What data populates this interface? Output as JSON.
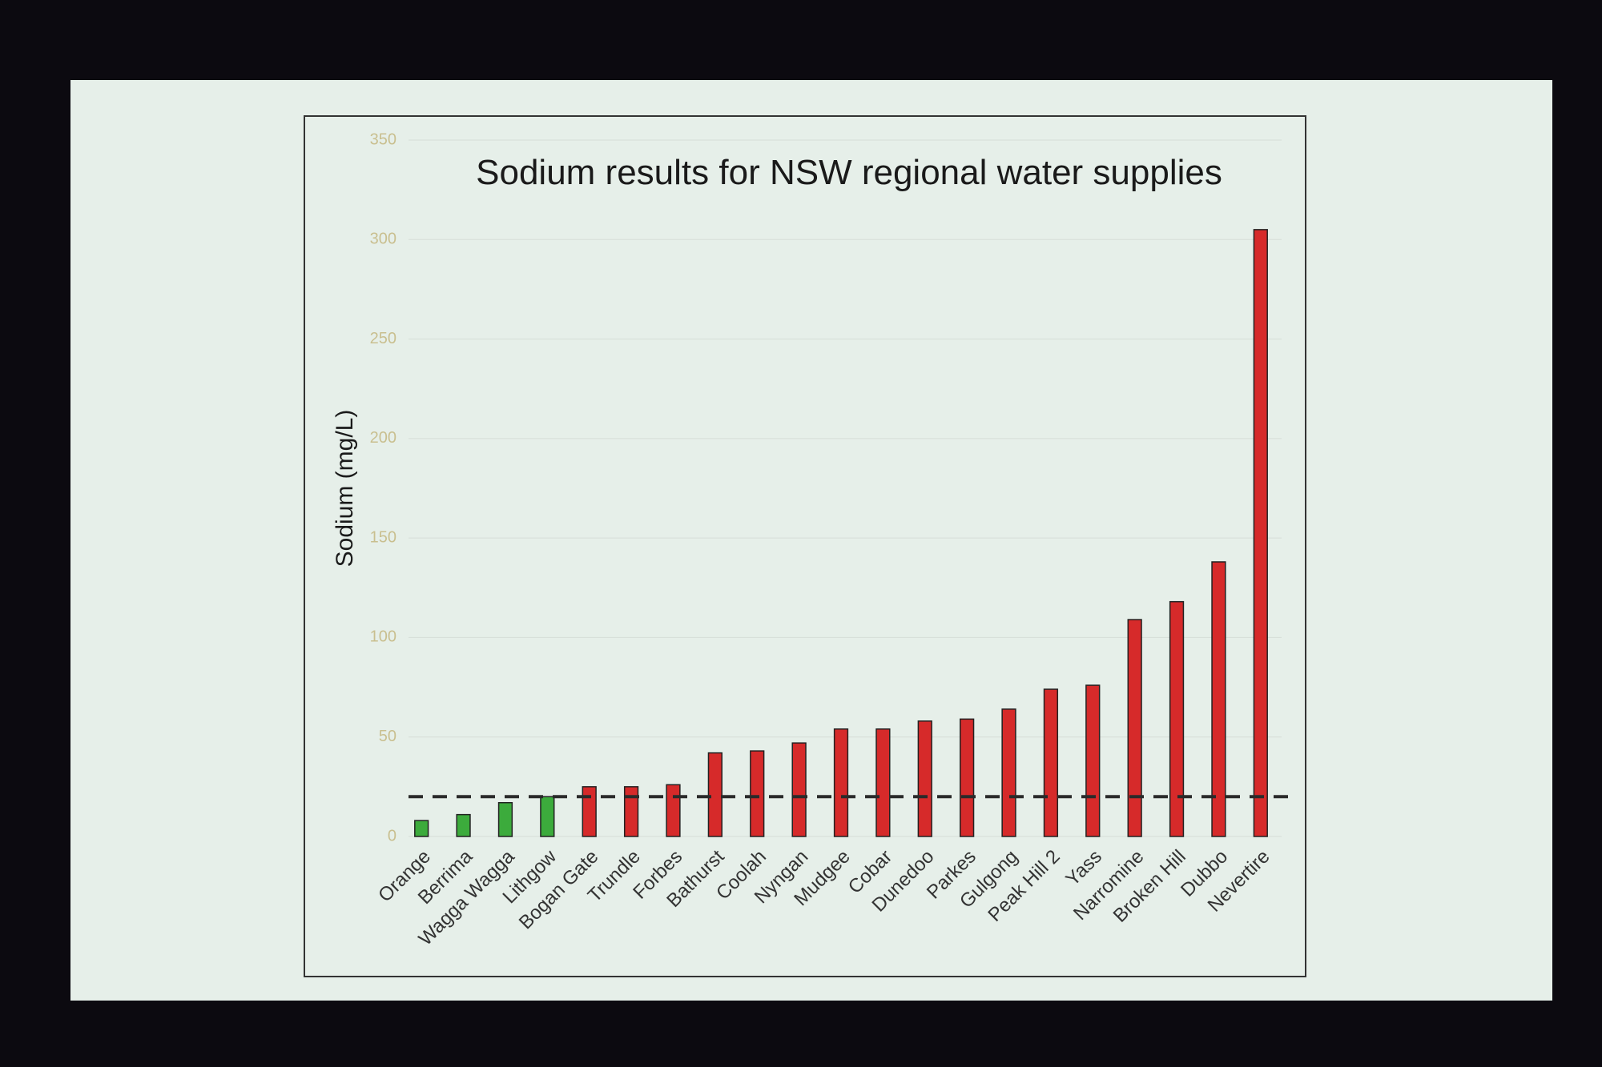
{
  "chart_data": {
    "type": "bar",
    "title": "Sodium results for NSW regional water supplies",
    "y_label": "Sodium (mg/L)",
    "categories": [
      "Orange",
      "Berrima",
      "Wagga Wagga",
      "Lithgow",
      "Bogan Gate",
      "Trundle",
      "Forbes",
      "Bathurst",
      "Coolah",
      "Nyngan",
      "Mudgee",
      "Cobar",
      "Dunedoo",
      "Parkes",
      "Gulgong",
      "Peak Hill 2",
      "Yass",
      "Narromine",
      "Broken Hill",
      "Dubbo",
      "Nevertire"
    ],
    "values": [
      8,
      11,
      17,
      20,
      25,
      25,
      26,
      42,
      43,
      47,
      54,
      54,
      58,
      59,
      64,
      74,
      76,
      109,
      118,
      138,
      305
    ],
    "colors": [
      "#3cab3c",
      "#3cab3c",
      "#3cab3c",
      "#3cab3c",
      "#d62a2a",
      "#d62a2a",
      "#d62a2a",
      "#d62a2a",
      "#d62a2a",
      "#d62a2a",
      "#d62a2a",
      "#d62a2a",
      "#d62a2a",
      "#d62a2a",
      "#d62a2a",
      "#d62a2a",
      "#d62a2a",
      "#d62a2a",
      "#d62a2a",
      "#d62a2a",
      "#d62a2a"
    ],
    "reference_line": 20,
    "ylim": [
      0,
      350
    ],
    "yticks": [
      0,
      50,
      100,
      150,
      200,
      250,
      300,
      350
    ],
    "grid": true
  }
}
